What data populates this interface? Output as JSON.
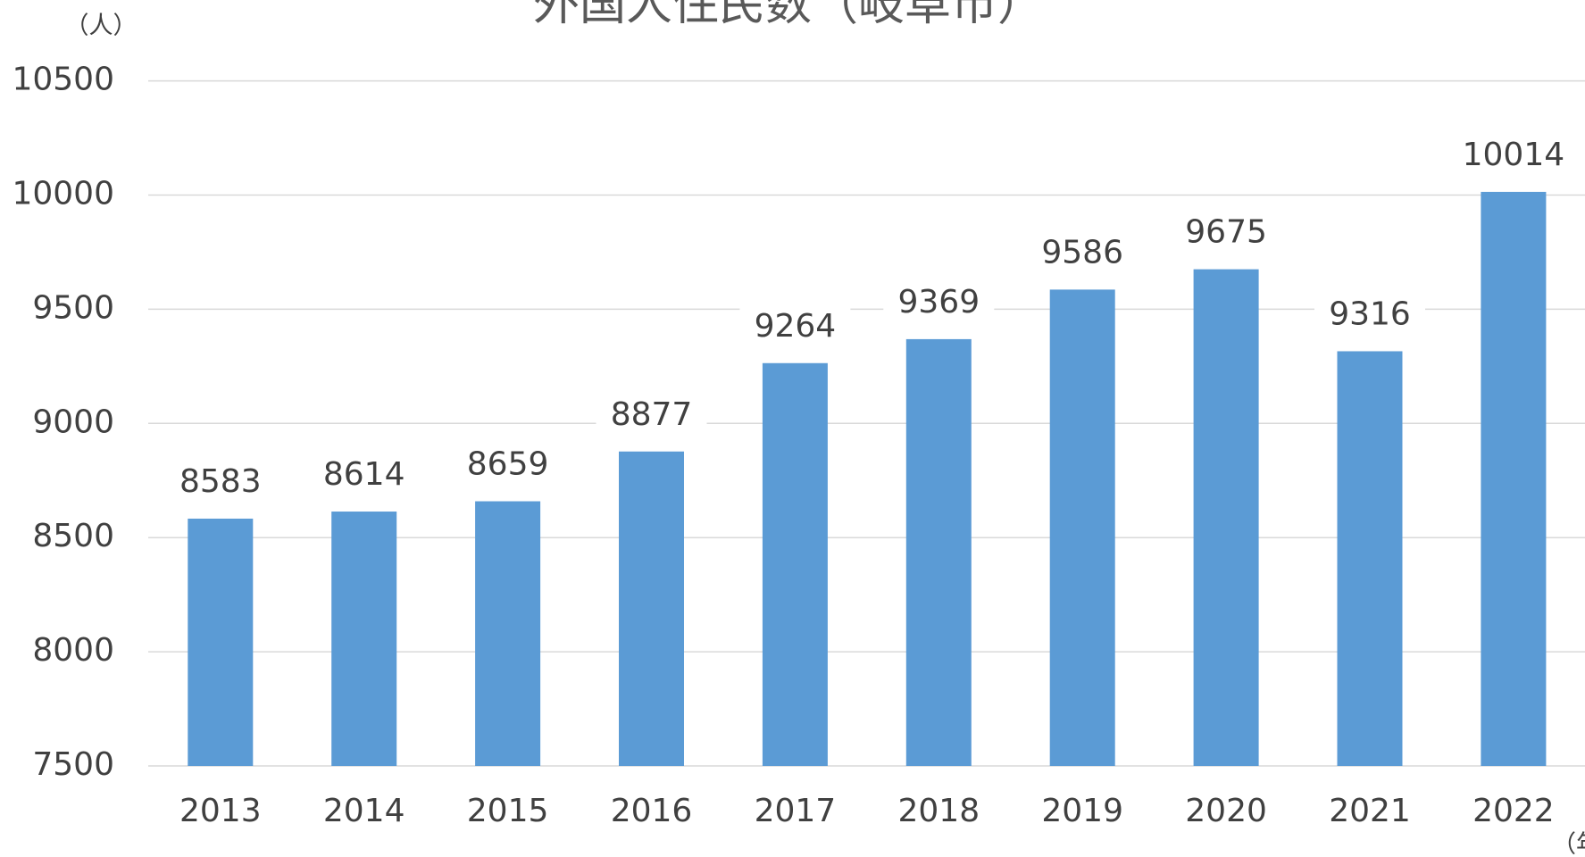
{
  "chart_data": {
    "type": "bar",
    "title": "外国人住民数（岐阜市）",
    "y_unit": "（人）",
    "x_unit": "（年）",
    "categories": [
      "2013",
      "2014",
      "2015",
      "2016",
      "2017",
      "2018",
      "2019",
      "2020",
      "2021",
      "2022"
    ],
    "values": [
      8583,
      8614,
      8659,
      8877,
      9264,
      9369,
      9586,
      9675,
      9316,
      10014
    ],
    "color": "#5b9bd5",
    "ylim": [
      7500,
      10500
    ],
    "yticks": [
      7500,
      8000,
      8500,
      9000,
      9500,
      10000,
      10500
    ],
    "grid": true
  }
}
